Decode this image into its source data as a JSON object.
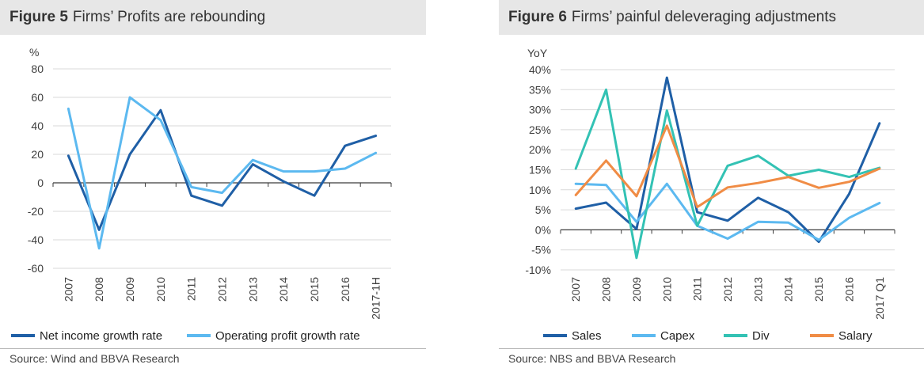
{
  "charts": [
    {
      "figure_label": "Figure 5",
      "title": "Firms’ Profits are rebounding",
      "source": "Source: Wind and BBVA Research",
      "unit_label": "%",
      "y_ticks": [
        "80",
        "60",
        "40",
        "20",
        "0",
        "-20",
        "-40",
        "-60"
      ],
      "categories": [
        "2007",
        "2008",
        "2009",
        "2010",
        "2011",
        "2012",
        "2013",
        "2014",
        "2015",
        "2016",
        "2017-1H"
      ]
    },
    {
      "figure_label": "Figure 6",
      "title": "Firms’ painful deleveraging adjustments",
      "source": "Source: NBS and BBVA Research",
      "unit_label": "YoY",
      "y_ticks": [
        "40%",
        "35%",
        "30%",
        "25%",
        "20%",
        "15%",
        "10%",
        "5%",
        "0%",
        "-5%",
        "-10%"
      ],
      "categories": [
        "2007",
        "2008",
        "2009",
        "2010",
        "2011",
        "2012",
        "2013",
        "2014",
        "2015",
        "2016",
        "2017 Q1"
      ]
    }
  ],
  "chart_data": [
    {
      "type": "line",
      "title": "Firms’ Profits are rebounding",
      "ylabel": "%",
      "ylim": [
        -60,
        80
      ],
      "y_ticks": [
        80,
        60,
        40,
        20,
        0,
        -20,
        -40,
        -60
      ],
      "categories": [
        "2007",
        "2008",
        "2009",
        "2010",
        "2011",
        "2012",
        "2013",
        "2014",
        "2015",
        "2016",
        "2017-1H"
      ],
      "grid": true,
      "legend_position": "bottom",
      "series": [
        {
          "name": "Net income growth rate",
          "color": "#1f5fa6",
          "values": [
            19,
            -33,
            20,
            51,
            -9,
            -16,
            13,
            1,
            -9,
            26,
            33
          ]
        },
        {
          "name": "Operating profit growth rate",
          "color": "#5cb9f0",
          "values": [
            52,
            -46,
            60,
            44,
            -3,
            -7,
            16,
            8,
            8,
            10,
            21
          ]
        }
      ]
    },
    {
      "type": "line",
      "title": "Firms’ painful deleveraging adjustments",
      "ylabel": "YoY",
      "ylim": [
        -10,
        40
      ],
      "y_ticks": [
        40,
        35,
        30,
        25,
        20,
        15,
        10,
        5,
        0,
        -5,
        -10
      ],
      "categories": [
        "2007",
        "2008",
        "2009",
        "2010",
        "2011",
        "2012",
        "2013",
        "2014",
        "2015",
        "2016",
        "2017 Q1"
      ],
      "grid": true,
      "legend_position": "bottom",
      "series": [
        {
          "name": "Sales",
          "color": "#1f5fa6",
          "values": [
            5.3,
            6.8,
            0.2,
            38,
            4.4,
            2.3,
            8,
            4.4,
            -3,
            9,
            26.6
          ]
        },
        {
          "name": "Capex",
          "color": "#5cb9f0",
          "values": [
            11.5,
            11.2,
            2,
            11.5,
            1,
            -2.2,
            2,
            1.8,
            -2.5,
            3,
            6.7
          ]
        },
        {
          "name": "Div",
          "color": "#33c2b4",
          "values": [
            15.3,
            35,
            -7,
            29.8,
            1,
            16,
            18.5,
            13.5,
            15,
            13.2,
            15.5
          ]
        },
        {
          "name": "Salary",
          "color": "#f08c45",
          "values": [
            8.7,
            17.3,
            8.4,
            26,
            5.7,
            10.6,
            11.7,
            13.2,
            10.5,
            12,
            15.3
          ]
        }
      ]
    }
  ]
}
